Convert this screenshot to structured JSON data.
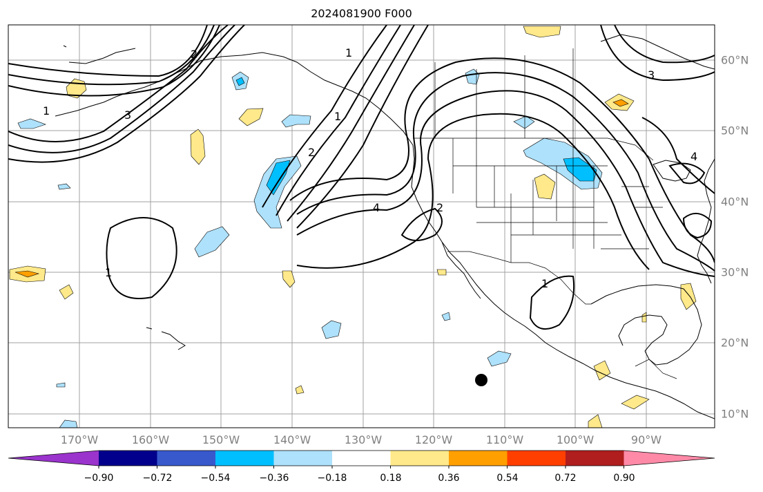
{
  "title": "2024081900 F000",
  "map": {
    "lon_labels": [
      "170°W",
      "160°W",
      "150°W",
      "140°W",
      "130°W",
      "120°W",
      "110°W",
      "100°W",
      "90°W"
    ],
    "lat_labels": [
      "60°N",
      "50°N",
      "40°N",
      "30°N",
      "20°N",
      "10°N"
    ],
    "contour_labels": [
      "1",
      "2",
      "3",
      "4"
    ],
    "marker": "black dot"
  },
  "colorbar": {
    "tick_labels": [
      "−0.90",
      "−0.72",
      "−0.54",
      "−0.36",
      "−0.18",
      "0.18",
      "0.36",
      "0.54",
      "0.72",
      "0.90"
    ],
    "colors": [
      "#9a34cc",
      "#00008c",
      "#3859cc",
      "#00bfff",
      "#aee1fb",
      "#ffffff",
      "#ffe98a",
      "#ff9f00",
      "#ff3f00",
      "#b01e1e",
      "#ff8aa8"
    ]
  }
}
